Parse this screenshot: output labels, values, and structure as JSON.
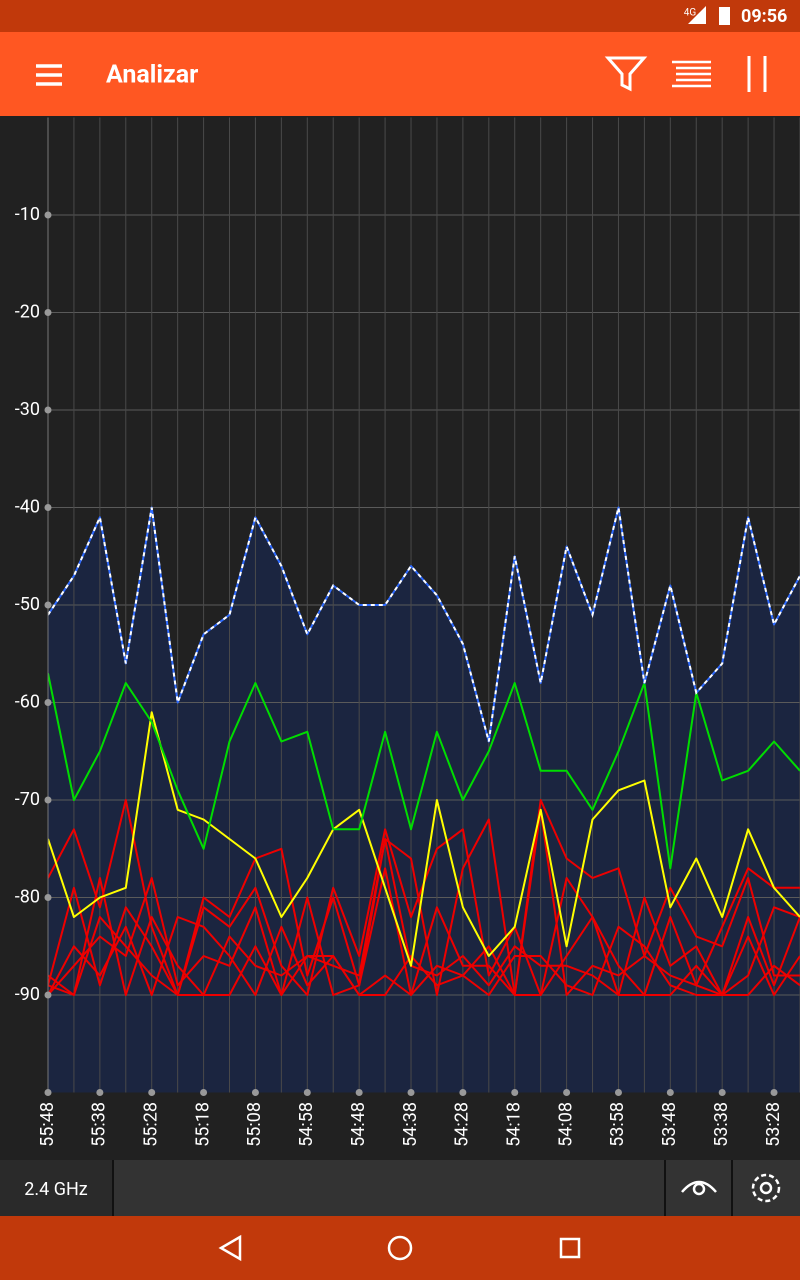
{
  "status_bar": {
    "network": "4G",
    "time": "09:56"
  },
  "app_bar": {
    "title": "Analizar"
  },
  "bottom_bar": {
    "band": "2.4 GHz"
  },
  "chart_data": {
    "type": "line",
    "categories": [
      "55:48",
      null,
      "55:38",
      null,
      "55:28",
      null,
      "55:18",
      null,
      "55:08",
      null,
      "54:58",
      null,
      "54:48",
      null,
      "54:38",
      null,
      "54:28",
      null,
      "54:18",
      null,
      "54:08",
      null,
      "53:58",
      null,
      "53:48",
      null,
      "53:38",
      null,
      "53:28",
      null
    ],
    "ylim": [
      -100,
      0
    ],
    "yticks": [
      -10,
      -20,
      -30,
      -40,
      -50,
      -60,
      -70,
      -80,
      -90
    ],
    "grid": true,
    "series": [
      {
        "color": "#2f6bff",
        "fill": "#1b2540",
        "values": [
          -51,
          -47,
          -41,
          -56,
          -40,
          -60,
          -53,
          -51,
          -41,
          -46,
          -53,
          -48,
          -50,
          -50,
          -46,
          -49,
          -54,
          -64,
          -45,
          -58,
          -44,
          -51,
          -40,
          -58,
          -48,
          -59,
          -56,
          -41,
          -52,
          -47
        ]
      },
      {
        "color": "#00dd00",
        "values": [
          -57,
          -70,
          -65,
          -58,
          -62,
          -69,
          -75,
          -64,
          -58,
          -64,
          -63,
          -73,
          -73,
          -63,
          -73,
          -63,
          -70,
          -65,
          -58,
          -67,
          -67,
          -71,
          -65,
          -58,
          -77,
          -59,
          -68,
          -67,
          -64,
          -67
        ]
      },
      {
        "color": "#ffff00",
        "values": [
          -74,
          -82,
          -80,
          -79,
          -61,
          -71,
          -72,
          -74,
          -76,
          -82,
          -78,
          -73,
          -71,
          -79,
          -87,
          -70,
          -81,
          -86,
          -83,
          -71,
          -85,
          -72,
          -69,
          -68,
          -81,
          -76,
          -82,
          -73,
          -79,
          -82
        ]
      },
      {
        "color": "#ee0000",
        "values": [
          -78,
          -73,
          -81,
          -70,
          -83,
          -90,
          -80,
          -82,
          -76,
          -75,
          -88,
          -80,
          -89,
          -74,
          -76,
          -90,
          -77,
          -72,
          -90,
          -70,
          -76,
          -78,
          -77,
          -86,
          -79,
          -84,
          -85,
          -78,
          -88,
          -88
        ]
      },
      {
        "color": "#ee0000",
        "values": [
          -89,
          -79,
          -89,
          -81,
          -85,
          -90,
          -81,
          -83,
          -79,
          -87,
          -90,
          -79,
          -86,
          -73,
          -82,
          -75,
          -73,
          -88,
          -83,
          -90,
          -86,
          -82,
          -87,
          -90,
          -82,
          -89,
          -83,
          -77,
          -79,
          -79
        ]
      },
      {
        "color": "#ee0000",
        "values": [
          -90,
          -87,
          -84,
          -86,
          -78,
          -89,
          -86,
          -87,
          -81,
          -90,
          -80,
          -90,
          -89,
          -77,
          -90,
          -81,
          -87,
          -87,
          -90,
          -71,
          -90,
          -87,
          -88,
          -86,
          -88,
          -89,
          -90,
          -84,
          -90,
          -86
        ]
      },
      {
        "color": "#ee0000",
        "values": [
          -89,
          -90,
          -78,
          -90,
          -82,
          -87,
          -90,
          -84,
          -87,
          -88,
          -86,
          -87,
          -88,
          -74,
          -87,
          -88,
          -86,
          -89,
          -85,
          -87,
          -87,
          -88,
          -90,
          -80,
          -87,
          -85,
          -90,
          -82,
          -89,
          -82
        ]
      },
      {
        "color": "#ee0000",
        "values": [
          -90,
          -85,
          -88,
          -83,
          -90,
          -82,
          -83,
          -86,
          -90,
          -83,
          -89,
          -86,
          -90,
          -88,
          -90,
          -87,
          -88,
          -90,
          -86,
          -86,
          -89,
          -90,
          -83,
          -85,
          -89,
          -90,
          -90,
          -88,
          -81,
          -82
        ]
      },
      {
        "color": "#ee0000",
        "values": [
          -88,
          -90,
          -82,
          -85,
          -88,
          -90,
          -90,
          -90,
          -85,
          -90,
          -86,
          -86,
          -90,
          -90,
          -86,
          -89,
          -88,
          -85,
          -90,
          -90,
          -78,
          -82,
          -90,
          -90,
          -90,
          -87,
          -90,
          -90,
          -87,
          -89
        ]
      }
    ]
  }
}
